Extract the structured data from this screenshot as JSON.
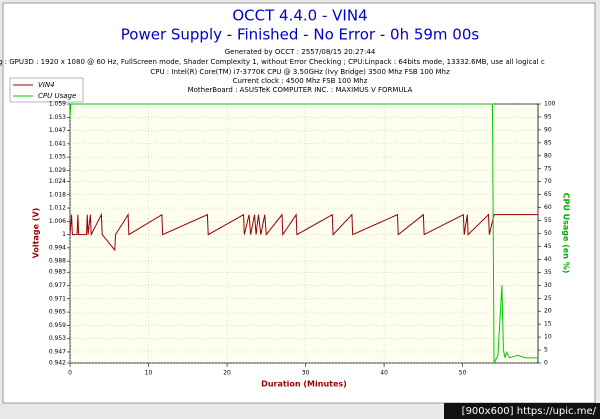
{
  "chart_data": {
    "type": "line",
    "title": "OCCT 4.4.0 - VIN4",
    "subtitle": "Power Supply - Finished - No Error - 0h 59m 00s",
    "info_lines": [
      "Generated by OCCT : 2557/08/15 20:27:44",
      "g : GPU3D : 1920 x 1080 @ 60 Hz, FullScreen mode, Shader Complexity 1, without Error Checking ; CPU:Linpack : 64bits mode, 13332.6MB, use all logical c",
      "CPU : Intel(R) Core(TM) i7-3770K CPU @ 3.50GHz (Ivy Bridge) 3500 Mhz FSB 100 Mhz",
      "Current clock : 4500 Mhz FSB 100 Mhz",
      "MotherBoard : ASUSTeK COMPUTER INC. : MAXIMUS V FORMULA"
    ],
    "xlabel": "Duration (Minutes)",
    "ylabel": "Voltage (V)",
    "y2label": "CPU Usage (en %)",
    "watermark": "[900x600] https://upic.me/",
    "xlim": [
      0,
      59.6
    ],
    "xticks": [
      0,
      10,
      20,
      30,
      40,
      50
    ],
    "ylim": [
      0.942,
      1.059
    ],
    "yticks": [
      0.942,
      0.947,
      0.953,
      0.959,
      0.965,
      0.971,
      0.977,
      0.983,
      0.988,
      0.994,
      1.0,
      1.006,
      1.012,
      1.018,
      1.024,
      1.029,
      1.035,
      1.041,
      1.047,
      1.053,
      1.059
    ],
    "y2lim": [
      0,
      100
    ],
    "y2ticks": [
      0,
      5,
      10,
      15,
      20,
      25,
      30,
      35,
      40,
      45,
      50,
      55,
      60,
      65,
      70,
      75,
      80,
      85,
      90,
      95,
      100
    ],
    "grid": true,
    "series": [
      {
        "name": "VIN4",
        "color": "#990000",
        "x": [
          0,
          0.2,
          0.3,
          0.9,
          1.0,
          1.1,
          2.1,
          2.2,
          2.3,
          2.6,
          2.7,
          4.0,
          4.1,
          5.7,
          5.8,
          7.4,
          7.5,
          11.7,
          11.8,
          17.5,
          17.6,
          22.1,
          22.2,
          22.8,
          23.0,
          23.5,
          23.7,
          24.0,
          24.3,
          24.8,
          25.0,
          27.0,
          27.1,
          28.8,
          28.9,
          33.4,
          33.5,
          35.9,
          36.0,
          41.7,
          41.8,
          45.0,
          45.1,
          50.1,
          50.2,
          50.6,
          50.7,
          53.3,
          53.4,
          54.0,
          59.6
        ],
        "values": [
          1.0,
          1.009,
          1.0,
          1.0,
          1.009,
          1.0,
          1.0,
          1.009,
          1.0,
          1.009,
          1.0,
          1.009,
          1.0,
          0.993,
          1.0,
          1.009,
          1.0,
          1.009,
          1.0,
          1.009,
          1.0,
          1.009,
          1.0,
          1.009,
          1.0,
          1.009,
          1.0,
          1.009,
          1.0,
          1.009,
          1.0,
          1.009,
          1.0,
          1.009,
          1.0,
          1.009,
          1.0,
          1.009,
          1.0,
          1.009,
          1.0,
          1.009,
          1.0,
          1.009,
          1.0,
          1.009,
          1.0,
          1.009,
          1.0,
          1.009,
          1.009
        ]
      },
      {
        "name": "CPU Usage",
        "color": "#00cc00",
        "axis": "y2",
        "x": [
          0,
          0.1,
          53.8,
          54.0,
          54.5,
          55.0,
          55.2,
          55.4,
          55.6,
          56,
          57,
          58,
          59.6
        ],
        "values": [
          95,
          100,
          100,
          0,
          3,
          30,
          5,
          2,
          4,
          2,
          3,
          2,
          2
        ]
      }
    ]
  }
}
